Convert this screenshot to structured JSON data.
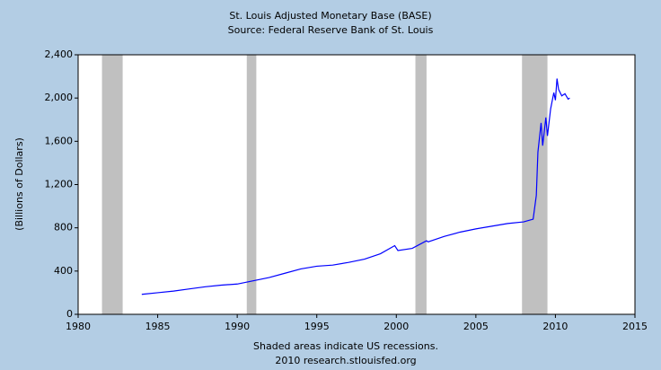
{
  "chart_data": {
    "type": "line",
    "title": "St. Louis Adjusted Monetary Base (BASE)",
    "subtitle": "Source: Federal Reserve Bank of St. Louis",
    "y_label": "(Billions of Dollars)",
    "notes": [
      "Shaded areas indicate US recessions.",
      "2010 research.stlouisfed.org"
    ],
    "x": [
      1984.0,
      1985,
      1986,
      1987,
      1988,
      1989,
      1990,
      1991,
      1992,
      1993,
      1994,
      1995,
      1996,
      1997,
      1998,
      1999,
      1999.9,
      2000.1,
      2001,
      2001.9,
      2002,
      2003,
      2004,
      2005,
      2006,
      2007,
      2008,
      2008.6,
      2008.8,
      2008.9,
      2009.1,
      2009.2,
      2009.4,
      2009.5,
      2009.7,
      2009.9,
      2010.0,
      2010.1,
      2010.2,
      2010.4,
      2010.6,
      2010.8,
      2010.9
    ],
    "series": [
      {
        "name": "BASE",
        "color": "#0000ff",
        "values": [
          185,
          200,
          215,
          235,
          255,
          270,
          280,
          310,
          340,
          380,
          420,
          445,
          455,
          480,
          510,
          560,
          635,
          590,
          610,
          680,
          670,
          720,
          760,
          790,
          815,
          840,
          855,
          880,
          1100,
          1500,
          1770,
          1560,
          1820,
          1650,
          1900,
          2050,
          1980,
          2180,
          2080,
          2020,
          2040,
          1990,
          2000
        ]
      }
    ],
    "recessions": [
      [
        1981.5,
        1982.8
      ],
      [
        1990.6,
        1991.2
      ],
      [
        2001.2,
        2001.9
      ],
      [
        2007.9,
        2009.5
      ]
    ],
    "recession_color": "#c0c0c0",
    "xlim": [
      1980,
      2015
    ],
    "xticks": [
      1980,
      1985,
      1990,
      1995,
      2000,
      2005,
      2010,
      2015
    ],
    "ylim": [
      0,
      2400
    ],
    "yticks": [
      0,
      400,
      800,
      {
        "value": 1200,
        "label": "1,200"
      },
      {
        "value": 1600,
        "label": "1,600"
      },
      {
        "value": 2000,
        "label": "2,000"
      },
      {
        "value": 2400,
        "label": "2,400"
      }
    ],
    "grid": false
  }
}
